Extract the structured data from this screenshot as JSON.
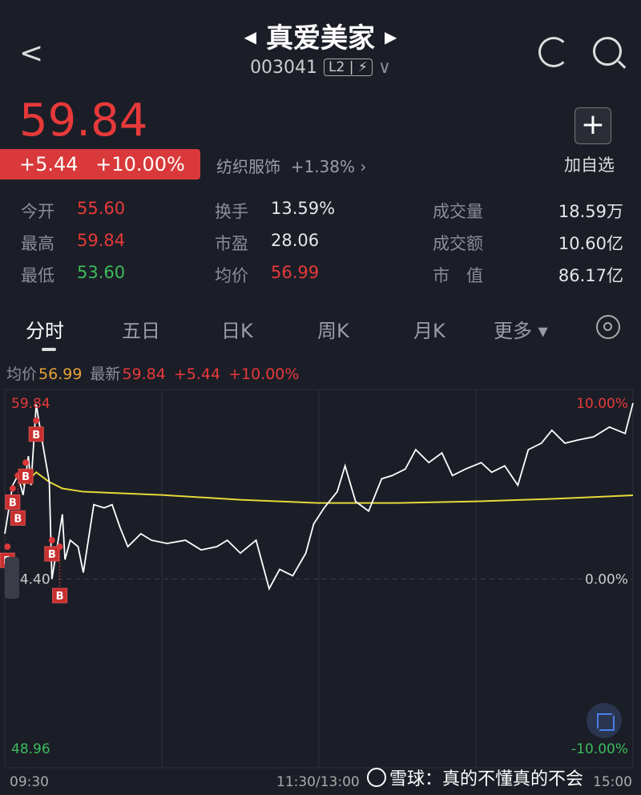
{
  "header": {
    "title": "真爱美家",
    "code": "003041",
    "badge": "L2 | ⚡",
    "icons": [
      "back-icon",
      "prev-stock-icon",
      "next-stock-icon",
      "refresh-icon",
      "search-icon",
      "dropdown-icon"
    ]
  },
  "quote": {
    "price": "59.84",
    "change": "+5.44",
    "change_pct": "+10.00%",
    "sector": "纺织服饰",
    "sector_pct": "+1.38%",
    "add_watch": "加自选"
  },
  "stats": [
    {
      "k": "今开",
      "v": "55.60",
      "c": "red"
    },
    {
      "k": "换手",
      "v": "13.59%",
      "c": ""
    },
    {
      "k": "成交量",
      "v": "18.59万",
      "c": ""
    },
    {
      "k": "最高",
      "v": "59.84",
      "c": "red"
    },
    {
      "k": "市盈",
      "v": "28.06",
      "c": ""
    },
    {
      "k": "成交额",
      "v": "10.60亿",
      "c": ""
    },
    {
      "k": "最低",
      "v": "53.60",
      "c": "green"
    },
    {
      "k": "均价",
      "v": "56.99",
      "c": "red"
    },
    {
      "k": "市　值",
      "v": "86.17亿",
      "c": ""
    }
  ],
  "tabs": [
    "分时",
    "五日",
    "日K",
    "周K",
    "月K",
    "更多 ▾"
  ],
  "info": {
    "avg_label": "均价",
    "avg": "56.99",
    "last_label": "最新",
    "last": "59.84",
    "chg": "+5.44",
    "pct": "+10.00%"
  },
  "watermark": "雪球：真的不懂真的不会",
  "colors": {
    "up": "#e8393a",
    "down": "#3dbb5c",
    "price_line": "#ffffff",
    "avg_line": "#e6d83a",
    "bg": "#1b1e27"
  },
  "chart_data": {
    "type": "line",
    "y_left_labels": [
      "59.84",
      "54.40",
      "48.96"
    ],
    "y_right_labels": [
      "10.00%",
      "0.00%",
      "-10.00%"
    ],
    "x_labels": [
      "09:30",
      "11:30/13:00",
      "15:00"
    ],
    "ylim": [
      48.96,
      59.84
    ],
    "base": 54.4,
    "grid": true,
    "price": [
      [
        "09:30",
        55.8
      ],
      [
        "09:33",
        57.3
      ],
      [
        "09:35",
        57.6
      ],
      [
        "09:37",
        57.0
      ],
      [
        "09:39",
        58.2
      ],
      [
        "09:40",
        57.3
      ],
      [
        "09:42",
        59.8
      ],
      [
        "09:44",
        58.8
      ],
      [
        "09:47",
        57.4
      ],
      [
        "09:48",
        54.4
      ],
      [
        "09:50",
        55.4
      ],
      [
        "09:52",
        56.4
      ],
      [
        "09:53",
        55.0
      ],
      [
        "09:55",
        55.6
      ],
      [
        "09:58",
        55.4
      ],
      [
        "10:00",
        54.6
      ],
      [
        "10:04",
        56.7
      ],
      [
        "10:08",
        56.6
      ],
      [
        "10:11",
        56.7
      ],
      [
        "10:14",
        56.0
      ],
      [
        "10:17",
        55.4
      ],
      [
        "10:22",
        55.8
      ],
      [
        "10:26",
        55.6
      ],
      [
        "10:32",
        55.5
      ],
      [
        "10:39",
        55.6
      ],
      [
        "10:45",
        55.3
      ],
      [
        "10:51",
        55.4
      ],
      [
        "10:55",
        55.6
      ],
      [
        "11:00",
        55.2
      ],
      [
        "11:06",
        55.6
      ],
      [
        "11:11",
        54.1
      ],
      [
        "11:15",
        54.7
      ],
      [
        "11:20",
        54.5
      ],
      [
        "11:25",
        55.2
      ],
      [
        "11:28",
        56.1
      ],
      [
        "13:02",
        56.6
      ],
      [
        "13:07",
        57.1
      ],
      [
        "13:10",
        57.9
      ],
      [
        "13:14",
        56.8
      ],
      [
        "13:19",
        56.5
      ],
      [
        "13:24",
        57.5
      ],
      [
        "13:28",
        57.6
      ],
      [
        "13:33",
        57.8
      ],
      [
        "13:37",
        58.4
      ],
      [
        "13:42",
        58.0
      ],
      [
        "13:47",
        58.3
      ],
      [
        "13:51",
        57.6
      ],
      [
        "13:56",
        57.8
      ],
      [
        "14:02",
        58.0
      ],
      [
        "14:06",
        57.7
      ],
      [
        "14:11",
        57.9
      ],
      [
        "14:16",
        57.3
      ],
      [
        "14:20",
        58.4
      ],
      [
        "14:25",
        58.6
      ],
      [
        "14:29",
        59.0
      ],
      [
        "14:34",
        58.6
      ],
      [
        "14:39",
        58.7
      ],
      [
        "14:45",
        58.8
      ],
      [
        "14:51",
        59.1
      ],
      [
        "14:57",
        58.9
      ],
      [
        "15:00",
        59.84
      ]
    ],
    "avg": [
      [
        "09:37",
        57.3
      ],
      [
        "09:42",
        57.7
      ],
      [
        "09:47",
        57.4
      ],
      [
        "09:52",
        57.2
      ],
      [
        "10:00",
        57.1
      ],
      [
        "10:30",
        57.0
      ],
      [
        "11:00",
        56.85
      ],
      [
        "11:30",
        56.75
      ],
      [
        "13:30",
        56.75
      ],
      [
        "14:00",
        56.8
      ],
      [
        "14:30",
        56.88
      ],
      [
        "15:00",
        56.99
      ]
    ],
    "markers": [
      {
        "time": "09:31",
        "price": 55.4,
        "label": "B"
      },
      {
        "time": "09:33",
        "price": 57.2,
        "label": "B"
      },
      {
        "time": "09:35",
        "price": 57.6,
        "label": "B"
      },
      {
        "time": "09:38",
        "price": 58.0,
        "label": "B"
      },
      {
        "time": "09:42",
        "price": 59.3,
        "label": "B"
      },
      {
        "time": "09:48",
        "price": 55.6,
        "label": "B"
      },
      {
        "time": "09:51",
        "price": 55.4,
        "label": "B"
      }
    ]
  }
}
